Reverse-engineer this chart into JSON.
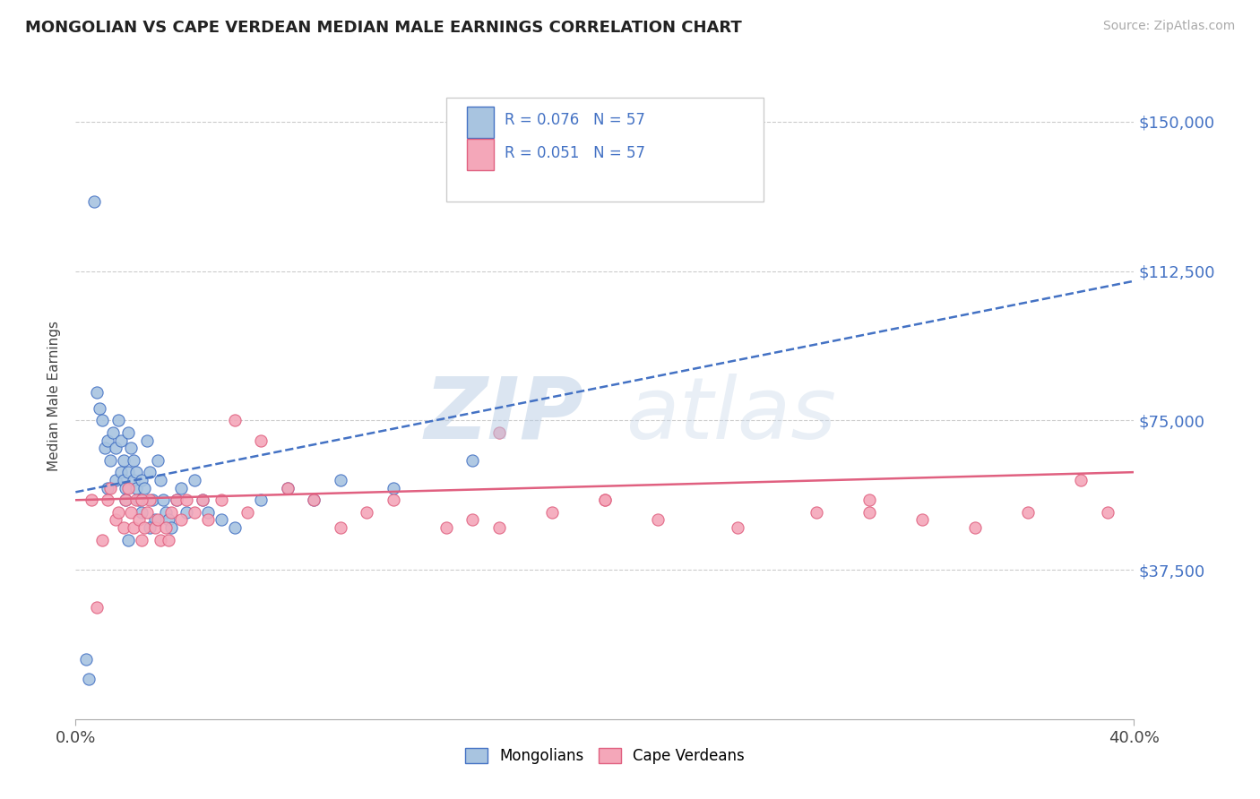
{
  "title": "MONGOLIAN VS CAPE VERDEAN MEDIAN MALE EARNINGS CORRELATION CHART",
  "source": "Source: ZipAtlas.com",
  "ylabel": "Median Male Earnings",
  "xlim": [
    0.0,
    0.4
  ],
  "ylim": [
    0,
    162500
  ],
  "yticks": [
    0,
    37500,
    75000,
    112500,
    150000
  ],
  "ytick_labels": [
    "",
    "$37,500",
    "$75,000",
    "$112,500",
    "$150,000"
  ],
  "xticks": [
    0.0,
    0.4
  ],
  "xtick_labels": [
    "0.0%",
    "40.0%"
  ],
  "mongolian_color": "#a8c4e0",
  "cape_verdean_color": "#f4a7b9",
  "mongolian_line_color": "#4472c4",
  "cape_verdean_line_color": "#e06080",
  "grid_color": "#cccccc",
  "legend_text_color": "#4472c4",
  "r_mongolian": "0.076",
  "n_mongolian": "57",
  "r_cape_verdean": "0.051",
  "n_cape_verdean": "57",
  "mongolian_scatter_x": [
    0.004,
    0.005,
    0.007,
    0.008,
    0.009,
    0.01,
    0.011,
    0.012,
    0.012,
    0.013,
    0.014,
    0.015,
    0.015,
    0.016,
    0.017,
    0.017,
    0.018,
    0.018,
    0.019,
    0.019,
    0.02,
    0.02,
    0.021,
    0.022,
    0.022,
    0.023,
    0.023,
    0.024,
    0.025,
    0.025,
    0.026,
    0.027,
    0.028,
    0.029,
    0.03,
    0.031,
    0.032,
    0.033,
    0.034,
    0.035,
    0.036,
    0.038,
    0.04,
    0.042,
    0.045,
    0.048,
    0.05,
    0.055,
    0.06,
    0.07,
    0.08,
    0.09,
    0.1,
    0.12,
    0.15,
    0.02,
    0.028
  ],
  "mongolian_scatter_y": [
    15000,
    10000,
    130000,
    82000,
    78000,
    75000,
    68000,
    70000,
    58000,
    65000,
    72000,
    68000,
    60000,
    75000,
    70000,
    62000,
    65000,
    60000,
    58000,
    55000,
    72000,
    62000,
    68000,
    65000,
    60000,
    62000,
    58000,
    55000,
    60000,
    52000,
    58000,
    70000,
    62000,
    55000,
    50000,
    65000,
    60000,
    55000,
    52000,
    50000,
    48000,
    55000,
    58000,
    52000,
    60000,
    55000,
    52000,
    50000,
    48000,
    55000,
    58000,
    55000,
    60000,
    58000,
    65000,
    45000,
    48000
  ],
  "cape_verdean_scatter_x": [
    0.006,
    0.008,
    0.01,
    0.012,
    0.013,
    0.015,
    0.016,
    0.018,
    0.019,
    0.02,
    0.021,
    0.022,
    0.023,
    0.024,
    0.025,
    0.026,
    0.027,
    0.028,
    0.03,
    0.031,
    0.032,
    0.034,
    0.036,
    0.038,
    0.04,
    0.042,
    0.045,
    0.048,
    0.05,
    0.055,
    0.06,
    0.065,
    0.07,
    0.08,
    0.09,
    0.1,
    0.11,
    0.12,
    0.14,
    0.15,
    0.16,
    0.18,
    0.2,
    0.22,
    0.25,
    0.28,
    0.3,
    0.32,
    0.34,
    0.36,
    0.38,
    0.39,
    0.025,
    0.035,
    0.16,
    0.3,
    0.2
  ],
  "cape_verdean_scatter_y": [
    55000,
    28000,
    45000,
    55000,
    58000,
    50000,
    52000,
    48000,
    55000,
    58000,
    52000,
    48000,
    55000,
    50000,
    45000,
    48000,
    52000,
    55000,
    48000,
    50000,
    45000,
    48000,
    52000,
    55000,
    50000,
    55000,
    52000,
    55000,
    50000,
    55000,
    75000,
    52000,
    70000,
    58000,
    55000,
    48000,
    52000,
    55000,
    48000,
    50000,
    72000,
    52000,
    55000,
    50000,
    48000,
    52000,
    55000,
    50000,
    48000,
    52000,
    60000,
    52000,
    55000,
    45000,
    48000,
    52000,
    55000
  ],
  "mongo_trend_x0": 0.0,
  "mongo_trend_y0": 57000,
  "mongo_trend_x1": 0.4,
  "mongo_trend_y1": 110000,
  "cape_trend_x0": 0.0,
  "cape_trend_y0": 55000,
  "cape_trend_x1": 0.4,
  "cape_trend_y1": 62000
}
